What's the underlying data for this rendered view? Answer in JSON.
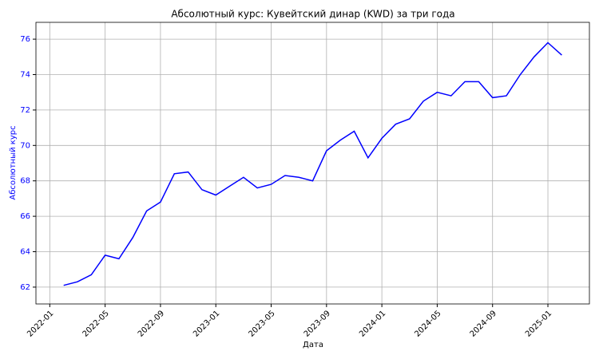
{
  "chart_data": {
    "type": "line",
    "title": "Абсолютный курс: Кувейтский динар (KWD) за три года",
    "xlabel": "Дата",
    "ylabel": "Абсолютный курс",
    "x": [
      "2022-02",
      "2022-03",
      "2022-04",
      "2022-05",
      "2022-06",
      "2022-07",
      "2022-08",
      "2022-09",
      "2022-10",
      "2022-11",
      "2022-12",
      "2023-01",
      "2023-02",
      "2023-03",
      "2023-04",
      "2023-05",
      "2023-06",
      "2023-07",
      "2023-08",
      "2023-09",
      "2023-10",
      "2023-11",
      "2023-12",
      "2024-01",
      "2024-02",
      "2024-03",
      "2024-04",
      "2024-05",
      "2024-06",
      "2024-07",
      "2024-08",
      "2024-09",
      "2024-10",
      "2024-11",
      "2024-12",
      "2025-01",
      "2025-02"
    ],
    "series": [
      {
        "name": "KWD",
        "color": "#0000ff",
        "values": [
          62.1,
          62.3,
          62.7,
          63.8,
          63.6,
          64.8,
          66.3,
          66.8,
          68.4,
          68.5,
          67.5,
          67.2,
          67.7,
          68.2,
          67.6,
          67.8,
          68.3,
          68.2,
          68.0,
          69.7,
          70.3,
          70.8,
          69.3,
          70.4,
          71.2,
          71.5,
          72.5,
          73.0,
          72.8,
          73.6,
          73.6,
          72.7,
          72.8,
          74.0,
          75.0,
          75.8,
          75.1
        ]
      }
    ],
    "xlim": [
      "2021-12",
      "2025-04"
    ],
    "xticks": [
      "2022-01",
      "2022-05",
      "2022-09",
      "2023-01",
      "2023-05",
      "2023-09",
      "2024-01",
      "2024-05",
      "2024-09",
      "2025-01"
    ],
    "ylim": [
      61.05,
      76.95
    ],
    "yticks": [
      62,
      64,
      66,
      68,
      70,
      72,
      74,
      76
    ],
    "grid": true
  }
}
